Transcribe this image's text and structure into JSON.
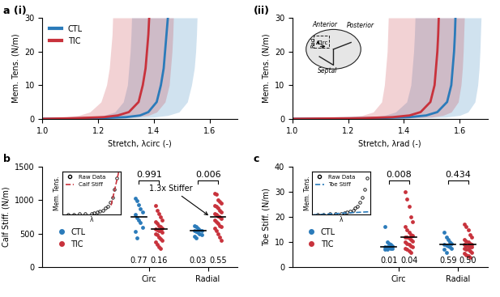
{
  "chart_data": [
    {
      "type": "line",
      "panel_label": "a (i)",
      "xlabel": "Stretch, λcirc (-)",
      "ylabel": "Mem. Tens. (N/m)",
      "xlim": [
        1.0,
        1.7
      ],
      "xticks": [
        {
          "value": 1.0,
          "label": "1.0"
        },
        1.2,
        1.4,
        1.6
      ],
      "ylim": [
        0,
        30
      ],
      "yticks": [
        0,
        10,
        20,
        30
      ],
      "legend": "upper left",
      "series": [
        {
          "name": "CTL",
          "color": "#2b7bba",
          "tension": [
            0,
            0.2,
            0.5,
            1,
            2,
            5,
            10,
            15,
            20,
            25,
            30
          ],
          "stretch": [
            1.0,
            1.2,
            1.3,
            1.35,
            1.38,
            1.41,
            1.425,
            1.435,
            1.44,
            1.445,
            1.45
          ],
          "stretch_lower": [
            1.0,
            1.08,
            1.17,
            1.22,
            1.26,
            1.29,
            1.305,
            1.31,
            1.315,
            1.318,
            1.32
          ],
          "stretch_upper": [
            1.0,
            1.3,
            1.4,
            1.45,
            1.49,
            1.52,
            1.535,
            1.545,
            1.55,
            1.553,
            1.555
          ]
        },
        {
          "name": "TIC",
          "color": "#c8323c",
          "tension": [
            0,
            0.2,
            0.5,
            1,
            2,
            5,
            10,
            15,
            20,
            25,
            30
          ],
          "stretch": [
            1.0,
            1.12,
            1.22,
            1.27,
            1.31,
            1.345,
            1.36,
            1.37,
            1.375,
            1.38,
            1.383
          ],
          "stretch_lower": [
            1.0,
            1.02,
            1.08,
            1.13,
            1.17,
            1.21,
            1.23,
            1.24,
            1.245,
            1.25,
            1.252
          ],
          "stretch_upper": [
            1.0,
            1.22,
            1.33,
            1.38,
            1.41,
            1.44,
            1.455,
            1.46,
            1.465,
            1.468,
            1.47
          ]
        }
      ]
    },
    {
      "type": "line",
      "panel_label": "(ii)",
      "xlabel": "Stretch, λrad (-)",
      "ylabel": "Mem. Tens. (N/m)",
      "xlim": [
        1.0,
        1.7
      ],
      "xticks": [
        {
          "value": 1.0,
          "label": "1.0"
        },
        1.2,
        1.4,
        1.6
      ],
      "ylim": [
        0,
        30
      ],
      "yticks": [
        0,
        10,
        20,
        30
      ],
      "annotations": [
        "Anterior",
        "Posterior",
        "Septal",
        "Rad",
        "Circ"
      ],
      "series": [
        {
          "name": "CTL",
          "color": "#2b7bba",
          "tension": [
            0,
            0.2,
            0.5,
            1,
            2,
            5,
            10,
            15,
            20,
            25,
            30
          ],
          "stretch": [
            1.0,
            1.3,
            1.42,
            1.48,
            1.52,
            1.555,
            1.57,
            1.575,
            1.58,
            1.583,
            1.585
          ],
          "stretch_lower": [
            1.0,
            1.15,
            1.27,
            1.33,
            1.37,
            1.41,
            1.425,
            1.43,
            1.435,
            1.438,
            1.44
          ],
          "stretch_upper": [
            1.0,
            1.42,
            1.55,
            1.6,
            1.63,
            1.655,
            1.665,
            1.67,
            1.673,
            1.675,
            1.677
          ]
        },
        {
          "name": "TIC",
          "color": "#c8323c",
          "tension": [
            0,
            0.2,
            0.5,
            1,
            2,
            5,
            10,
            15,
            20,
            25,
            30
          ],
          "stretch": [
            1.0,
            1.25,
            1.36,
            1.42,
            1.46,
            1.495,
            1.51,
            1.515,
            1.52,
            1.523,
            1.525
          ],
          "stretch_lower": [
            1.0,
            1.1,
            1.2,
            1.25,
            1.29,
            1.32,
            1.33,
            1.335,
            1.34,
            1.342,
            1.344
          ],
          "stretch_upper": [
            1.0,
            1.4,
            1.5,
            1.54,
            1.57,
            1.595,
            1.605,
            1.61,
            1.613,
            1.615,
            1.617
          ]
        }
      ]
    },
    {
      "type": "strip",
      "panel_label": "b",
      "ylabel": "Calf Stiff. (N/m)",
      "categories": [
        "Circ",
        "Radial"
      ],
      "ylim": [
        0,
        1500
      ],
      "yticks": [
        0,
        500,
        1000,
        1500
      ],
      "legend": "lower left",
      "p_values": [
        "0.991",
        "0.006"
      ],
      "annotations": [
        "1.3x Stiffer"
      ],
      "series": [
        {
          "name": "CTL",
          "color": "#2b7bba",
          "values": [
            [
              1020,
              990,
              930,
              870,
              820,
              780,
              740,
              700,
              660,
              590,
              530,
              440
            ],
            [
              620,
              600,
              580,
              560,
              550,
              540,
              530,
              520,
              500,
              480,
              460,
              440
            ]
          ],
          "median": [
            750,
            540
          ],
          "p_labels": [
            "0.77",
            "0.03"
          ]
        },
        {
          "name": "TIC",
          "color": "#c8323c",
          "values": [
            [
              920,
              850,
              800,
              750,
              700,
              680,
              650,
              620,
              600,
              580,
              570,
              560,
              550,
              540,
              520,
              500,
              480,
              450,
              420,
              400,
              380,
              340,
              300,
              280
            ],
            [
              1100,
              1080,
              1000,
              980,
              950,
              920,
              900,
              880,
              850,
              820,
              800,
              780,
              760,
              750,
              730,
              700,
              680,
              650,
              620,
              600,
              580,
              550,
              500,
              450,
              400
            ]
          ],
          "median": [
            570,
            750
          ],
          "p_labels": [
            "0.16",
            "0.55"
          ]
        }
      ],
      "inset": {
        "type": "scatter",
        "tick_labels": false,
        "xlabel": "λ",
        "ylabel": "Mem. Tens.",
        "xlim": [
          0,
          1
        ],
        "ylim": [
          0,
          1
        ],
        "legend": "upper left",
        "series": [
          {
            "name": "Raw Data",
            "marker": "o",
            "color": "#000000",
            "x": [
              0.1,
              0.2,
              0.3,
              0.4,
              0.5,
              0.55,
              0.6,
              0.65,
              0.7,
              0.74,
              0.78,
              0.82,
              0.86,
              0.9,
              0.94
            ],
            "values": [
              0.01,
              0.01,
              0.02,
              0.02,
              0.03,
              0.04,
              0.06,
              0.08,
              0.11,
              0.15,
              0.2,
              0.28,
              0.4,
              0.58,
              0.85
            ]
          },
          {
            "name": "Calf Stiff",
            "line_style": "dashed",
            "color": "#c8323c",
            "x": [
              0.84,
              0.98
            ],
            "values": [
              0.22,
              1.05
            ]
          }
        ]
      }
    },
    {
      "type": "strip",
      "panel_label": "c",
      "ylabel": "Toe Stiff. (N/m)",
      "categories": [
        "Circ",
        "Radial"
      ],
      "ylim": [
        0,
        40
      ],
      "yticks": [
        0,
        10,
        20,
        30,
        40
      ],
      "legend": "lower left",
      "p_values": [
        "0.008",
        "0.434"
      ],
      "series": [
        {
          "name": "CTL",
          "color": "#2b7bba",
          "values": [
            [
              16,
              10,
              9.5,
              9,
              8.5,
              8,
              8,
              7.8,
              7.5,
              7.5,
              7.3,
              7
            ],
            [
              14,
              12,
              11,
              10,
              9.5,
              9,
              8.8,
              8.5,
              8,
              7.5,
              7,
              6
            ]
          ],
          "median": [
            8,
            9
          ],
          "p_labels": [
            "0.01",
            "0.59"
          ]
        },
        {
          "name": "TIC",
          "color": "#c8323c",
          "values": [
            [
              30,
              27,
              24,
              20,
              18,
              16,
              15,
              14,
              13,
              12.5,
              12,
              12,
              11.5,
              11,
              10.5,
              10,
              9.5,
              9,
              8.5,
              8,
              7.5,
              7,
              6.5,
              6
            ],
            [
              17,
              16,
              15,
              13,
              12,
              11,
              10.5,
              10,
              9.5,
              9,
              9,
              8.5,
              8.5,
              8,
              8,
              7.5,
              7,
              7,
              6.5,
              6,
              5.5,
              5,
              4.5,
              4
            ]
          ],
          "median": [
            12,
            9
          ],
          "p_labels": [
            "0.04",
            "0.50"
          ]
        }
      ],
      "inset": {
        "type": "scatter",
        "tick_labels": false,
        "xlabel": "λ",
        "ylabel": "Mem. Tens.",
        "xlim": [
          0,
          1
        ],
        "ylim": [
          0,
          1
        ],
        "legend": "upper left",
        "series": [
          {
            "name": "Raw Data",
            "marker": "o",
            "color": "#000000",
            "x": [
              0.1,
              0.2,
              0.3,
              0.4,
              0.5,
              0.55,
              0.6,
              0.65,
              0.7,
              0.74,
              0.78,
              0.82,
              0.86,
              0.9,
              0.94
            ],
            "values": [
              0.01,
              0.01,
              0.02,
              0.02,
              0.03,
              0.04,
              0.06,
              0.08,
              0.11,
              0.15,
              0.2,
              0.28,
              0.4,
              0.58,
              0.85
            ]
          },
          {
            "name": "Toe Stiff",
            "line_style": "dashed",
            "color": "#2b7bba",
            "x": [
              0.02,
              0.98
            ],
            "values": [
              0.0,
              0.07
            ]
          }
        ]
      }
    }
  ]
}
